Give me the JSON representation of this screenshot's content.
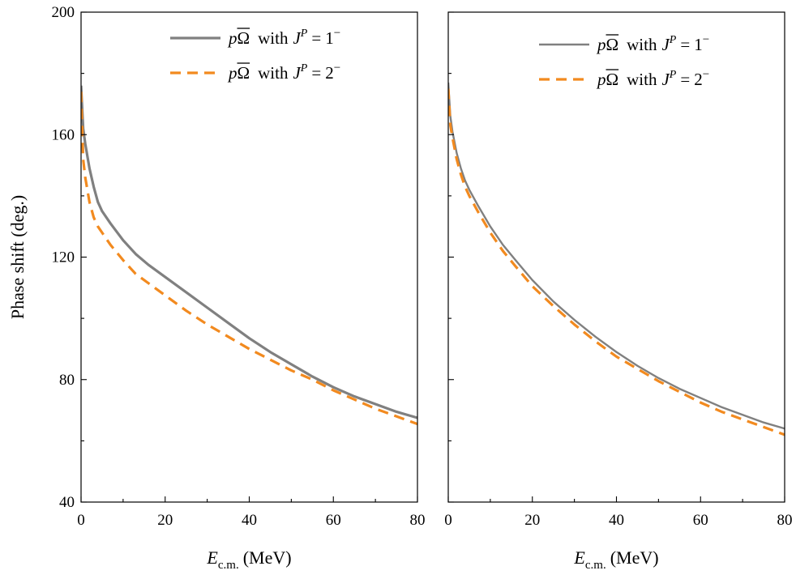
{
  "chart_data": [
    {
      "type": "line",
      "panel": "left",
      "ylabel": "Phase shift (deg.)",
      "xlabel_main": "E",
      "xlabel_sub": "c.m.",
      "xlabel_unit": "(MeV)",
      "xlim": [
        0,
        80
      ],
      "ylim": [
        40,
        200
      ],
      "xticks": [
        0,
        20,
        40,
        60,
        80
      ],
      "yticks": [
        40,
        80,
        120,
        160,
        200
      ],
      "grid": false,
      "legend_position": "top-right",
      "series": [
        {
          "legend": {
            "particle": "p",
            "antiparticle": "Ω",
            "with": "with",
            "J": "J",
            "P": "P",
            "eq": "=",
            "value": "1",
            "parity": "−"
          },
          "color": "#808080",
          "style": "solid",
          "x": [
            0,
            0.5,
            1,
            2,
            3,
            4,
            5,
            7,
            10,
            13,
            16,
            20,
            25,
            30,
            35,
            40,
            45,
            50,
            55,
            60,
            65,
            70,
            75,
            80
          ],
          "y": [
            176,
            162,
            157,
            149,
            143,
            138,
            135,
            131,
            125.5,
            121,
            117.5,
            113.5,
            108.5,
            103.5,
            98.5,
            93.5,
            89,
            85,
            81,
            77.5,
            74.5,
            72,
            69.5,
            67.5
          ]
        },
        {
          "legend": {
            "particle": "p",
            "antiparticle": "Ω",
            "with": "with",
            "J": "J",
            "P": "P",
            "eq": "=",
            "value": "2",
            "parity": "−"
          },
          "color": "#F28A1F",
          "style": "dashed",
          "x": [
            0,
            0.5,
            1,
            2,
            3,
            4,
            5,
            7,
            10,
            13,
            16,
            20,
            25,
            30,
            35,
            40,
            45,
            50,
            55,
            60,
            65,
            70,
            75,
            80
          ],
          "y": [
            174,
            152,
            146,
            138,
            133,
            130,
            128,
            124,
            119,
            114.5,
            111.5,
            107.5,
            102.5,
            98,
            94,
            90,
            86.5,
            83,
            80,
            76.5,
            73.5,
            70.5,
            68,
            65.5
          ]
        }
      ]
    },
    {
      "type": "line",
      "panel": "right",
      "xlabel_main": "E",
      "xlabel_sub": "c.m.",
      "xlabel_unit": "(MeV)",
      "xlim": [
        0,
        80
      ],
      "ylim": [
        40,
        200
      ],
      "xticks": [
        0,
        20,
        40,
        60,
        80
      ],
      "yticks": [
        40,
        80,
        120,
        160,
        200
      ],
      "grid": false,
      "legend_position": "top-right",
      "series": [
        {
          "legend": {
            "particle": "p",
            "antiparticle": "Ω",
            "with": "with",
            "J": "J",
            "P": "P",
            "eq": "=",
            "value": "1",
            "parity": "−"
          },
          "color": "#808080",
          "style": "solid",
          "x": [
            0,
            0.5,
            1,
            2,
            3,
            4,
            5,
            7,
            10,
            13,
            16,
            20,
            25,
            30,
            35,
            40,
            45,
            50,
            55,
            60,
            65,
            70,
            75,
            80
          ],
          "y": [
            177,
            166,
            161,
            154,
            149,
            145,
            142,
            137,
            130,
            124,
            119,
            112.5,
            105.5,
            99.5,
            94,
            89,
            84.5,
            80.5,
            77,
            74,
            71,
            68.5,
            66,
            64
          ]
        },
        {
          "legend": {
            "particle": "p",
            "antiparticle": "Ω",
            "with": "with",
            "J": "J",
            "P": "P",
            "eq": "=",
            "value": "2",
            "parity": "−"
          },
          "color": "#F28A1F",
          "style": "dashed",
          "x": [
            0,
            0.5,
            1,
            2,
            3,
            4,
            5,
            7,
            10,
            13,
            16,
            20,
            25,
            30,
            35,
            40,
            45,
            50,
            55,
            60,
            65,
            70,
            75,
            80
          ],
          "y": [
            175,
            163,
            159,
            152,
            147,
            143,
            140,
            135,
            128,
            122,
            117,
            110.5,
            104,
            98,
            92.5,
            87.5,
            83.5,
            79.5,
            76,
            72.5,
            69.5,
            67,
            64.5,
            62
          ]
        }
      ]
    }
  ]
}
